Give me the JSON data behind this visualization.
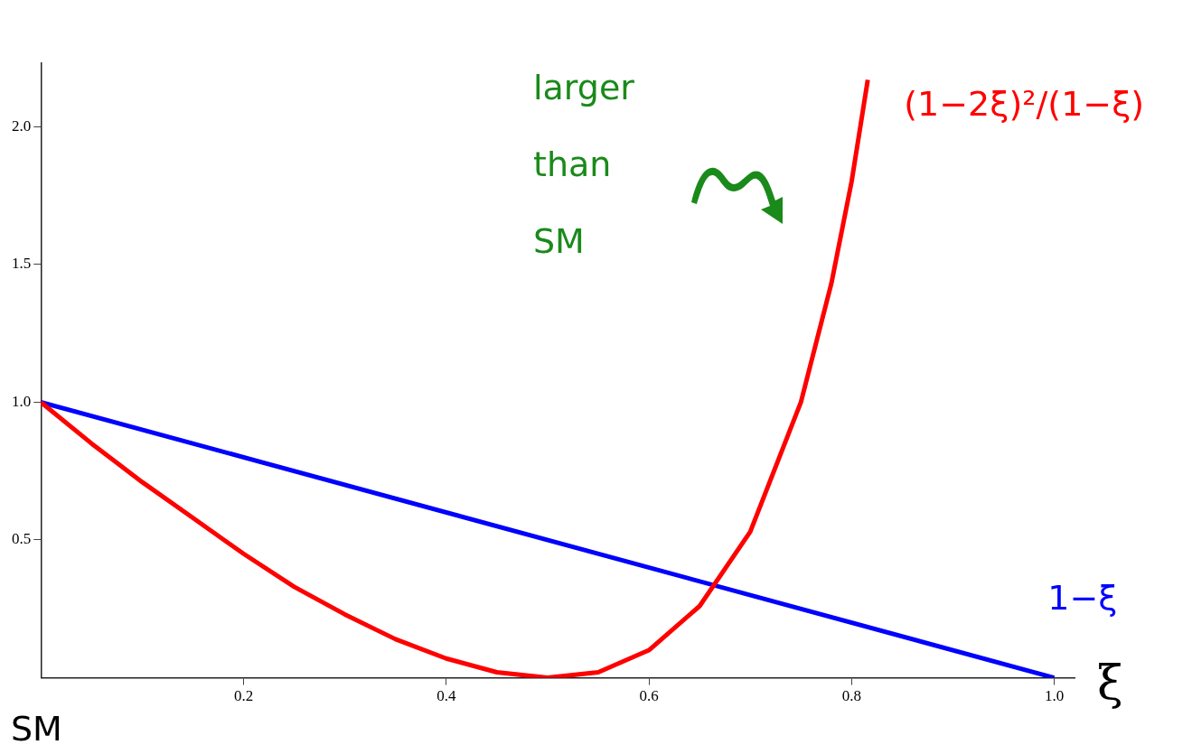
{
  "chart_data": {
    "type": "line",
    "xlabel": "ξ",
    "xlim": [
      0,
      1.02
    ],
    "xticks": [
      0.2,
      0.4,
      0.6,
      {
        "value": 0.8,
        "label": "0.8"
      },
      {
        "value": 1,
        "label": "1.0"
      }
    ],
    "ylim": [
      0,
      2.23
    ],
    "yticks": [
      0.5,
      {
        "value": 1,
        "label": "1.0"
      },
      1.5,
      {
        "value": 2,
        "label": "2.0"
      }
    ],
    "grid": false,
    "legend": false,
    "marker": "none",
    "line_style": "solid",
    "series": [
      {
        "name": "(1−2ξ)²/(1−ξ)",
        "color": "#ff0000",
        "x": [
          0,
          0.05,
          0.1,
          0.15,
          0.2,
          0.25,
          0.3,
          0.35,
          0.4,
          0.45,
          0.5,
          0.55,
          0.6,
          0.65,
          0.7,
          0.75,
          0.78,
          0.8,
          0.816
        ],
        "values": [
          1,
          0.85,
          0.71,
          0.58,
          0.45,
          0.33,
          0.23,
          0.14,
          0.07,
          0.02,
          0,
          0.02,
          0.1,
          0.26,
          0.53,
          1,
          1.43,
          1.8,
          2.17
        ]
      },
      {
        "name": "1−ξ",
        "color": "#0000ff",
        "x": [
          0,
          1
        ],
        "values": [
          1,
          0
        ]
      }
    ],
    "annotations": [
      "larger than SM",
      "SM"
    ]
  }
}
